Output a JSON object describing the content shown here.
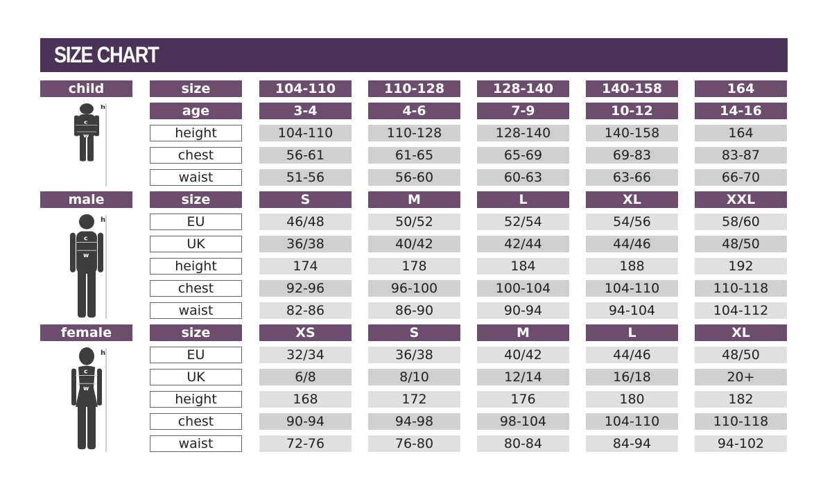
{
  "title": "SIZE CHART",
  "colors": {
    "title_bar": "#4b3358",
    "header_cell": "#6d4d6d",
    "value_cell": "#cfcfcf",
    "figure": "#3d3d3d"
  },
  "sections": [
    {
      "name": "child",
      "figure": "child-silhouette-icon",
      "figure_labels": [
        "h",
        "c",
        "w"
      ],
      "rows": [
        {
          "label": "size",
          "header": true,
          "values": [
            "104-110",
            "110-128",
            "128-140",
            "140-158",
            "164"
          ]
        },
        {
          "label": "age",
          "header": true,
          "values": [
            "3-4",
            "4-6",
            "7-9",
            "10-12",
            "14-16"
          ]
        },
        {
          "label": "height",
          "values": [
            "104-110",
            "110-128",
            "128-140",
            "140-158",
            "164"
          ]
        },
        {
          "label": "chest",
          "values": [
            "56-61",
            "61-65",
            "65-69",
            "69-83",
            "83-87"
          ]
        },
        {
          "label": "waist",
          "values": [
            "51-56",
            "56-60",
            "60-63",
            "63-66",
            "66-70"
          ]
        }
      ]
    },
    {
      "name": "male",
      "figure": "male-silhouette-icon",
      "figure_labels": [
        "h",
        "c",
        "w"
      ],
      "rows": [
        {
          "label": "size",
          "header": true,
          "values": [
            "S",
            "M",
            "L",
            "XL",
            "XXL"
          ]
        },
        {
          "label": "EU",
          "values": [
            "46/48",
            "50/52",
            "52/54",
            "54/56",
            "58/60"
          ]
        },
        {
          "label": "UK",
          "values": [
            "36/38",
            "40/42",
            "42/44",
            "44/46",
            "48/50"
          ]
        },
        {
          "label": "height",
          "values": [
            "174",
            "178",
            "184",
            "188",
            "192"
          ]
        },
        {
          "label": "chest",
          "values": [
            "92-96",
            "96-100",
            "100-104",
            "104-110",
            "110-118"
          ]
        },
        {
          "label": "waist",
          "values": [
            "82-86",
            "86-90",
            "90-94",
            "94-104",
            "104-112"
          ]
        }
      ]
    },
    {
      "name": "female",
      "figure": "female-silhouette-icon",
      "figure_labels": [
        "h",
        "c",
        "w"
      ],
      "rows": [
        {
          "label": "size",
          "header": true,
          "values": [
            "XS",
            "S",
            "M",
            "L",
            "XL"
          ]
        },
        {
          "label": "EU",
          "values": [
            "32/34",
            "36/38",
            "40/42",
            "44/46",
            "48/50"
          ]
        },
        {
          "label": "UK",
          "values": [
            "6/8",
            "8/10",
            "12/14",
            "16/18",
            "20+"
          ]
        },
        {
          "label": "height",
          "values": [
            "168",
            "172",
            "176",
            "180",
            "182"
          ]
        },
        {
          "label": "chest",
          "values": [
            "90-94",
            "94-98",
            "98-104",
            "104-110",
            "110-118"
          ]
        },
        {
          "label": "waist",
          "values": [
            "72-76",
            "76-80",
            "80-84",
            "84-94",
            "94-102"
          ]
        }
      ]
    }
  ]
}
